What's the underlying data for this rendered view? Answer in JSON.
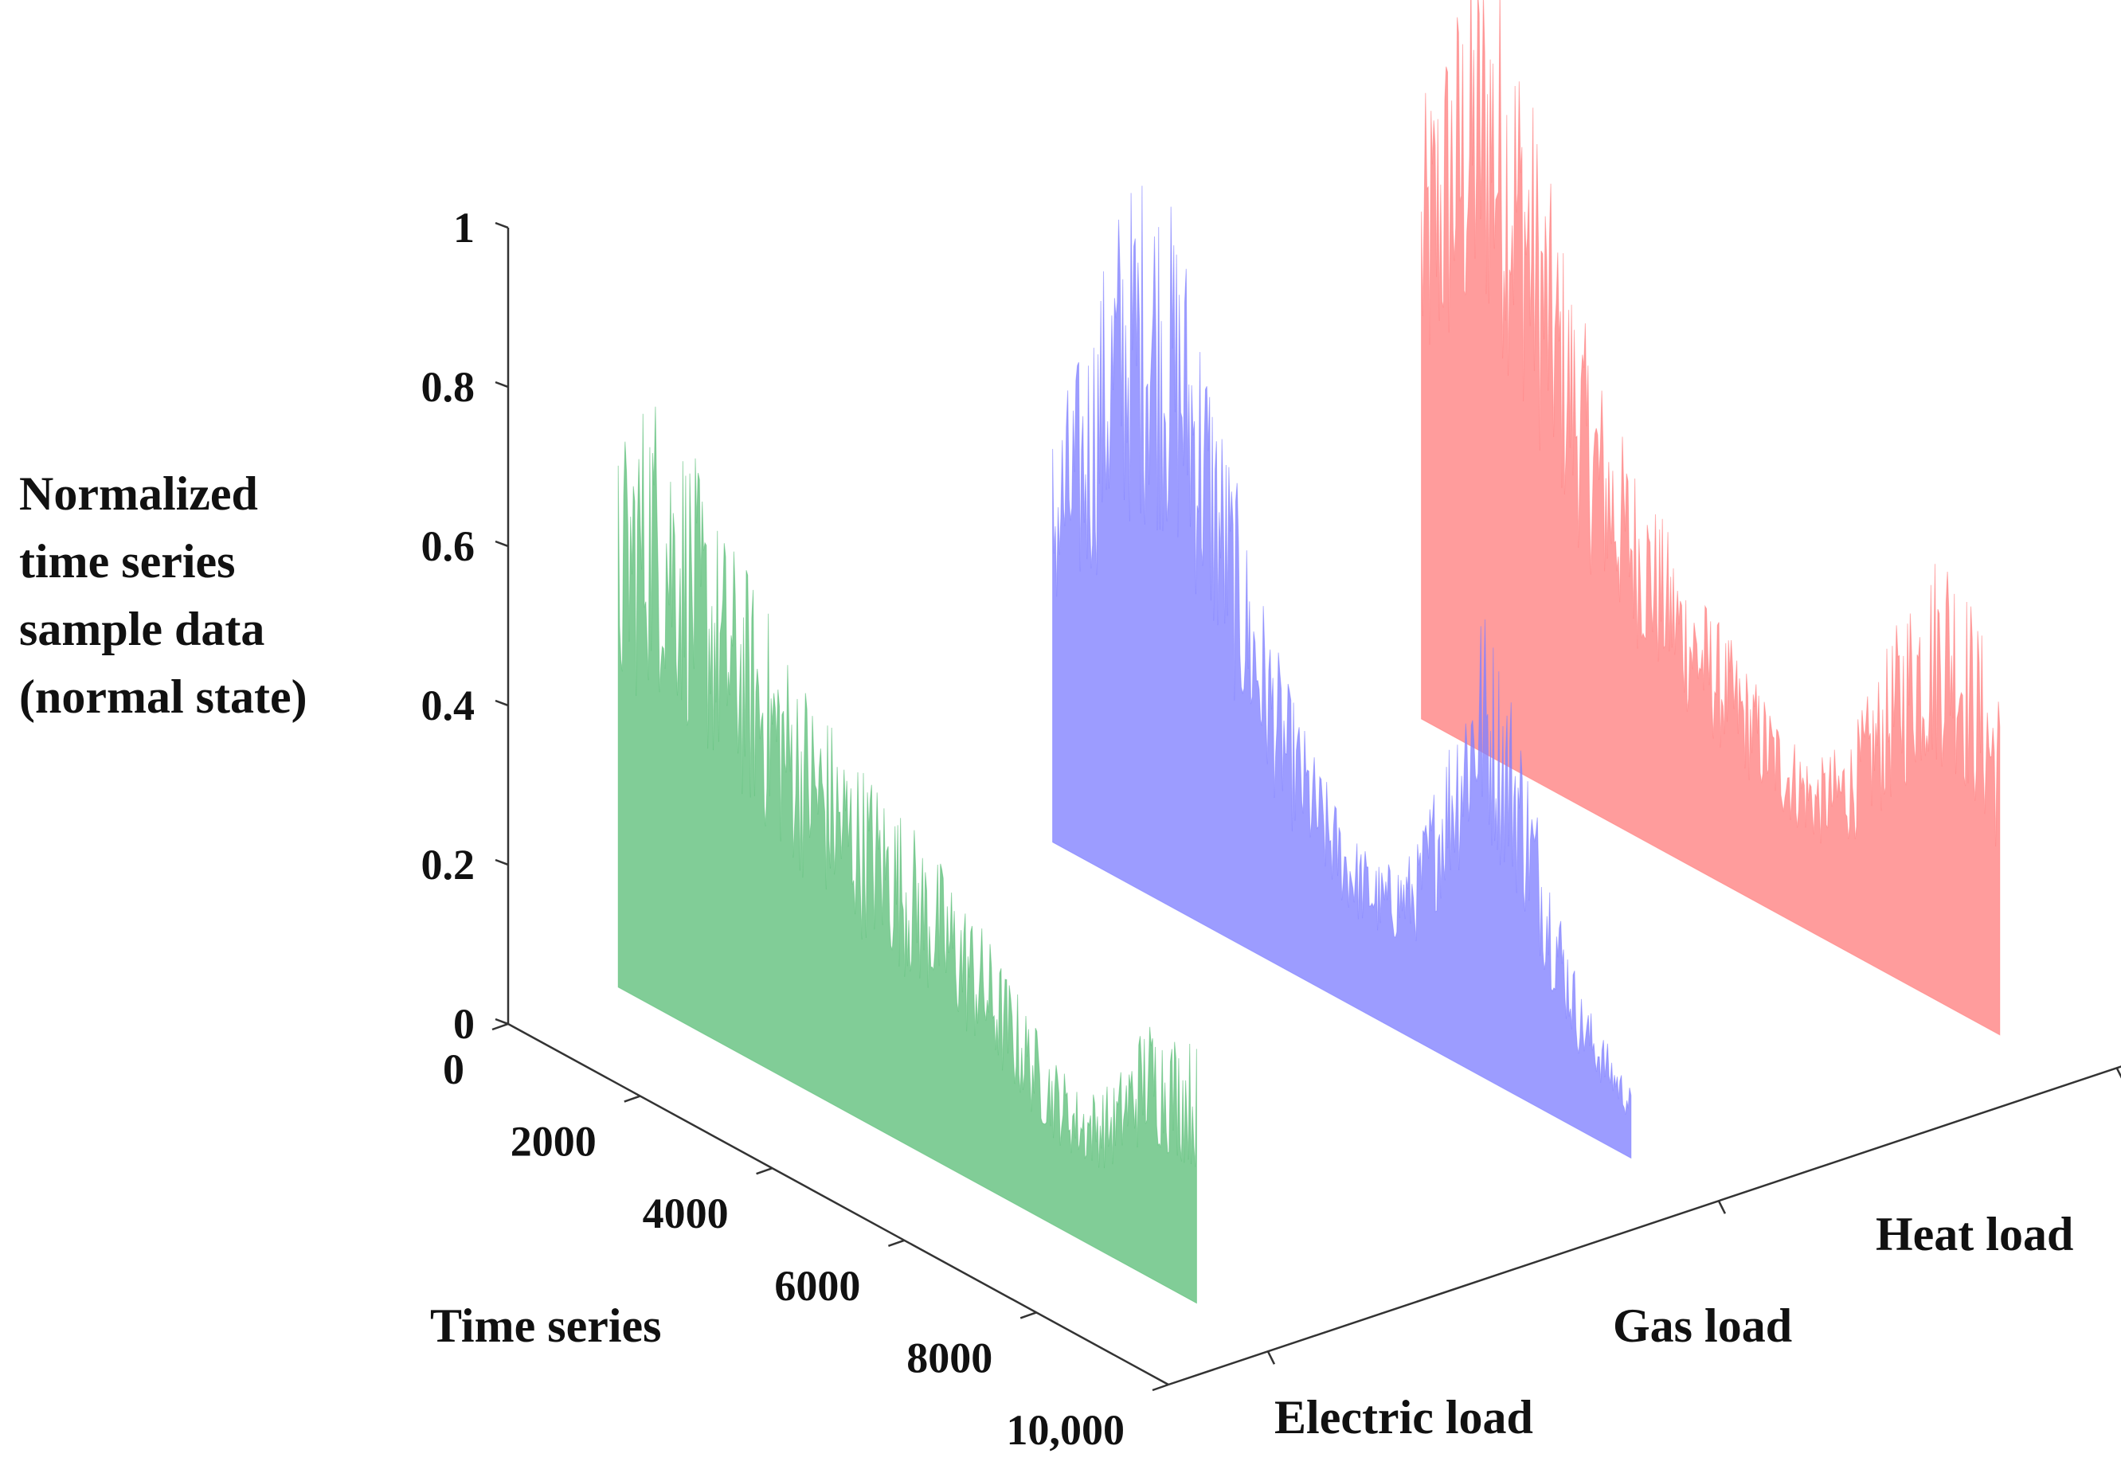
{
  "chart_data": {
    "type": "3d-bar-series",
    "title": "",
    "zlabel_lines": [
      "Normalized",
      "time series",
      "sample data",
      "(normal state)"
    ],
    "xlabel": "Time series",
    "ylim": [
      0,
      1
    ],
    "z_ticks": [
      "0",
      "0.2",
      "0.4",
      "0.6",
      "0.8",
      "1"
    ],
    "z_tick_values": [
      0,
      0.2,
      0.4,
      0.6,
      0.8,
      1
    ],
    "x_range": [
      0,
      10000
    ],
    "x_ticks": [
      "0",
      "2000",
      "4000",
      "6000",
      "8000",
      "10,000"
    ],
    "x_tick_values": [
      0,
      2000,
      4000,
      6000,
      8000,
      10000
    ],
    "categories": [
      "Electric load",
      "Gas load",
      "Heat load"
    ],
    "series": [
      {
        "name": "Electric load",
        "color": "#5dbf7a",
        "x": [
          0,
          500,
          1000,
          1500,
          2000,
          2500,
          3000,
          3500,
          4000,
          4500,
          5000,
          5500,
          6000,
          6500,
          7000,
          7500,
          8000,
          8760
        ],
        "values": [
          0.62,
          0.72,
          0.68,
          0.6,
          0.56,
          0.5,
          0.46,
          0.42,
          0.4,
          0.37,
          0.34,
          0.3,
          0.25,
          0.2,
          0.17,
          0.2,
          0.3,
          0.3
        ]
      },
      {
        "name": "Gas load",
        "color": "#8080ff",
        "x": [
          0,
          500,
          1000,
          1500,
          2000,
          2500,
          3000,
          3500,
          4000,
          4500,
          5000,
          5500,
          6000,
          6500,
          7000,
          7500,
          8000,
          8760
        ],
        "values": [
          0.48,
          0.6,
          0.78,
          0.85,
          0.78,
          0.62,
          0.46,
          0.34,
          0.26,
          0.2,
          0.18,
          0.22,
          0.38,
          0.55,
          0.46,
          0.3,
          0.16,
          0.08
        ]
      },
      {
        "name": "Heat load",
        "color": "#ff8080",
        "x": [
          0,
          500,
          1000,
          1500,
          2000,
          2500,
          3000,
          3500,
          4000,
          4500,
          5000,
          5500,
          6000,
          6500,
          7000,
          7500,
          8000,
          8760
        ],
        "values": [
          0.7,
          0.85,
          0.95,
          0.85,
          0.68,
          0.55,
          0.46,
          0.4,
          0.34,
          0.3,
          0.26,
          0.22,
          0.2,
          0.25,
          0.36,
          0.48,
          0.55,
          0.4
        ]
      }
    ]
  }
}
